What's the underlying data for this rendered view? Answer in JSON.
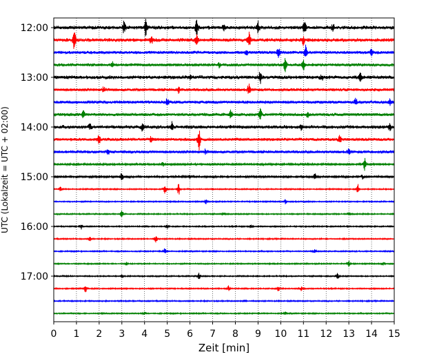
{
  "chart_data": {
    "type": "line",
    "xlabel": "Zeit  [min]",
    "ylabel": "UTC (Lokalzeit = UTC + 02:00)",
    "xlim": [
      0,
      15
    ],
    "x_ticks": [
      "0",
      "1",
      "2",
      "3",
      "4",
      "5",
      "6",
      "7",
      "8",
      "9",
      "10",
      "11",
      "12",
      "13",
      "14",
      "15"
    ],
    "y_ticks": [
      "12:00",
      "13:00",
      "14:00",
      "15:00",
      "16:00",
      "17:00"
    ],
    "grid_x": true,
    "line_colors": [
      "#000000",
      "#ff0000",
      "#0000ff",
      "#008000"
    ],
    "traces": [
      {
        "start": "12:00",
        "color": "#000000",
        "amp": 3,
        "events": [
          [
            3.1,
            9
          ],
          [
            4.05,
            12
          ],
          [
            6.3,
            13
          ],
          [
            7.5,
            4
          ],
          [
            9.0,
            9
          ],
          [
            11.05,
            9
          ],
          [
            12.3,
            4
          ]
        ]
      },
      {
        "start": "12:15",
        "color": "#ff0000",
        "amp": 3,
        "events": [
          [
            0.9,
            12
          ],
          [
            6.3,
            7
          ],
          [
            8.6,
            12
          ],
          [
            11.0,
            6
          ],
          [
            4.3,
            5
          ]
        ]
      },
      {
        "start": "12:30",
        "color": "#0000ff",
        "amp": 2.5,
        "events": [
          [
            9.9,
            7
          ],
          [
            11.1,
            10
          ],
          [
            14.0,
            5
          ],
          [
            8.5,
            4
          ]
        ]
      },
      {
        "start": "12:45",
        "color": "#008000",
        "amp": 2.5,
        "events": [
          [
            2.6,
            5
          ],
          [
            10.2,
            10
          ],
          [
            11.0,
            8
          ],
          [
            7.3,
            4
          ]
        ]
      },
      {
        "start": "13:00",
        "color": "#000000",
        "amp": 3,
        "events": [
          [
            9.1,
            9
          ],
          [
            13.5,
            6
          ],
          [
            6.0,
            4
          ],
          [
            11.8,
            4
          ]
        ]
      },
      {
        "start": "13:15",
        "color": "#ff0000",
        "amp": 2.5,
        "events": [
          [
            8.6,
            8
          ],
          [
            5.5,
            5
          ],
          [
            2.2,
            4
          ]
        ]
      },
      {
        "start": "13:30",
        "color": "#0000ff",
        "amp": 2.5,
        "events": [
          [
            5.0,
            5
          ],
          [
            13.3,
            5
          ],
          [
            14.8,
            4
          ]
        ]
      },
      {
        "start": "13:45",
        "color": "#008000",
        "amp": 2.5,
        "events": [
          [
            7.8,
            8
          ],
          [
            9.1,
            8
          ],
          [
            1.3,
            5
          ],
          [
            11.2,
            4
          ]
        ]
      },
      {
        "start": "14:00",
        "color": "#000000",
        "amp": 3,
        "events": [
          [
            3.9,
            5
          ],
          [
            5.2,
            6
          ],
          [
            10.9,
            5
          ],
          [
            14.8,
            5
          ],
          [
            1.6,
            4
          ]
        ]
      },
      {
        "start": "14:15",
        "color": "#ff0000",
        "amp": 2.5,
        "events": [
          [
            6.4,
            16
          ],
          [
            2.0,
            6
          ],
          [
            12.6,
            6
          ],
          [
            4.3,
            4
          ]
        ]
      },
      {
        "start": "14:30",
        "color": "#0000ff",
        "amp": 2.5,
        "events": [
          [
            2.4,
            4
          ],
          [
            13.0,
            4
          ],
          [
            6.7,
            4
          ]
        ]
      },
      {
        "start": "14:45",
        "color": "#008000",
        "amp": 1.5,
        "events": [
          [
            13.7,
            8
          ],
          [
            4.8,
            3
          ]
        ]
      },
      {
        "start": "15:00",
        "color": "#000000",
        "amp": 1.5,
        "events": [
          [
            3.0,
            7
          ],
          [
            11.5,
            4
          ],
          [
            6.0,
            3
          ],
          [
            13.6,
            3
          ]
        ]
      },
      {
        "start": "15:15",
        "color": "#ff0000",
        "amp": 1,
        "events": [
          [
            4.9,
            6
          ],
          [
            5.5,
            9
          ],
          [
            13.4,
            7
          ],
          [
            0.3,
            3
          ]
        ]
      },
      {
        "start": "15:30",
        "color": "#0000ff",
        "amp": 1,
        "events": [
          [
            6.7,
            3
          ],
          [
            10.2,
            3
          ]
        ]
      },
      {
        "start": "15:45",
        "color": "#008000",
        "amp": 1,
        "events": [
          [
            3.0,
            5
          ],
          [
            13.0,
            3
          ],
          [
            7.5,
            2
          ]
        ]
      },
      {
        "start": "16:00",
        "color": "#000000",
        "amp": 1,
        "events": [
          [
            1.2,
            4
          ],
          [
            5.0,
            3
          ],
          [
            8.7,
            3
          ]
        ]
      },
      {
        "start": "16:15",
        "color": "#ff0000",
        "amp": 1,
        "events": [
          [
            4.5,
            5
          ],
          [
            1.6,
            3
          ]
        ]
      },
      {
        "start": "16:30",
        "color": "#0000ff",
        "amp": 1,
        "events": [
          [
            4.9,
            4
          ],
          [
            11.5,
            3
          ]
        ]
      },
      {
        "start": "16:45",
        "color": "#008000",
        "amp": 1,
        "events": [
          [
            13.0,
            4
          ],
          [
            14.5,
            3
          ],
          [
            3.2,
            2
          ]
        ]
      },
      {
        "start": "17:00",
        "color": "#000000",
        "amp": 1,
        "events": [
          [
            6.4,
            5
          ],
          [
            12.5,
            4
          ],
          [
            3.0,
            2
          ]
        ]
      },
      {
        "start": "17:15",
        "color": "#ff0000",
        "amp": 1,
        "events": [
          [
            1.4,
            5
          ],
          [
            7.7,
            4
          ],
          [
            9.9,
            4
          ],
          [
            10.9,
            3
          ]
        ]
      },
      {
        "start": "17:30",
        "color": "#0000ff",
        "amp": 1,
        "events": [
          [
            8.4,
            2
          ]
        ]
      },
      {
        "start": "17:45",
        "color": "#008000",
        "amp": 1,
        "events": [
          [
            10.2,
            2
          ],
          [
            4.0,
            2
          ]
        ]
      }
    ]
  }
}
